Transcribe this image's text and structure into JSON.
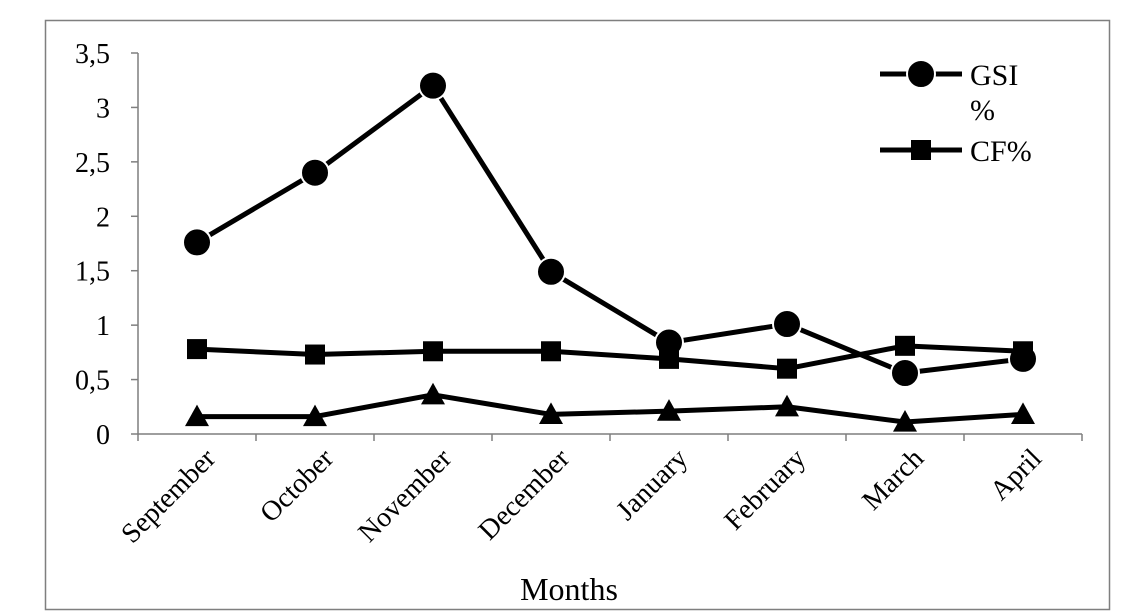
{
  "chart_data": {
    "type": "line",
    "xlabel": "Months",
    "ylabel": "",
    "ylim": [
      0,
      3.5
    ],
    "yticks": [
      "0",
      "0,5",
      "1",
      "1,5",
      "2",
      "2,5",
      "3",
      "3,5"
    ],
    "categories": [
      "September",
      "October",
      "November",
      "December",
      "January",
      "February",
      "March",
      "April"
    ],
    "grid": false,
    "legend_position": "top-right",
    "series": [
      {
        "name": "GSI %",
        "legend_lines": [
          "GSI",
          "%"
        ],
        "marker": "circle",
        "values": [
          1.76,
          2.4,
          3.2,
          1.49,
          0.84,
          1.01,
          0.56,
          0.69
        ]
      },
      {
        "name": "CF%",
        "legend_lines": [
          "CF%"
        ],
        "marker": "square",
        "values": [
          0.78,
          0.73,
          0.76,
          0.76,
          0.69,
          0.6,
          0.81,
          0.76
        ]
      },
      {
        "name": "",
        "legend_lines": [],
        "marker": "triangle",
        "values": [
          0.16,
          0.16,
          0.36,
          0.18,
          0.21,
          0.25,
          0.11,
          0.18
        ]
      }
    ],
    "colors": {
      "line": "#000000",
      "frame": "#7f7f7f",
      "axis": "#7f7f7f"
    }
  }
}
